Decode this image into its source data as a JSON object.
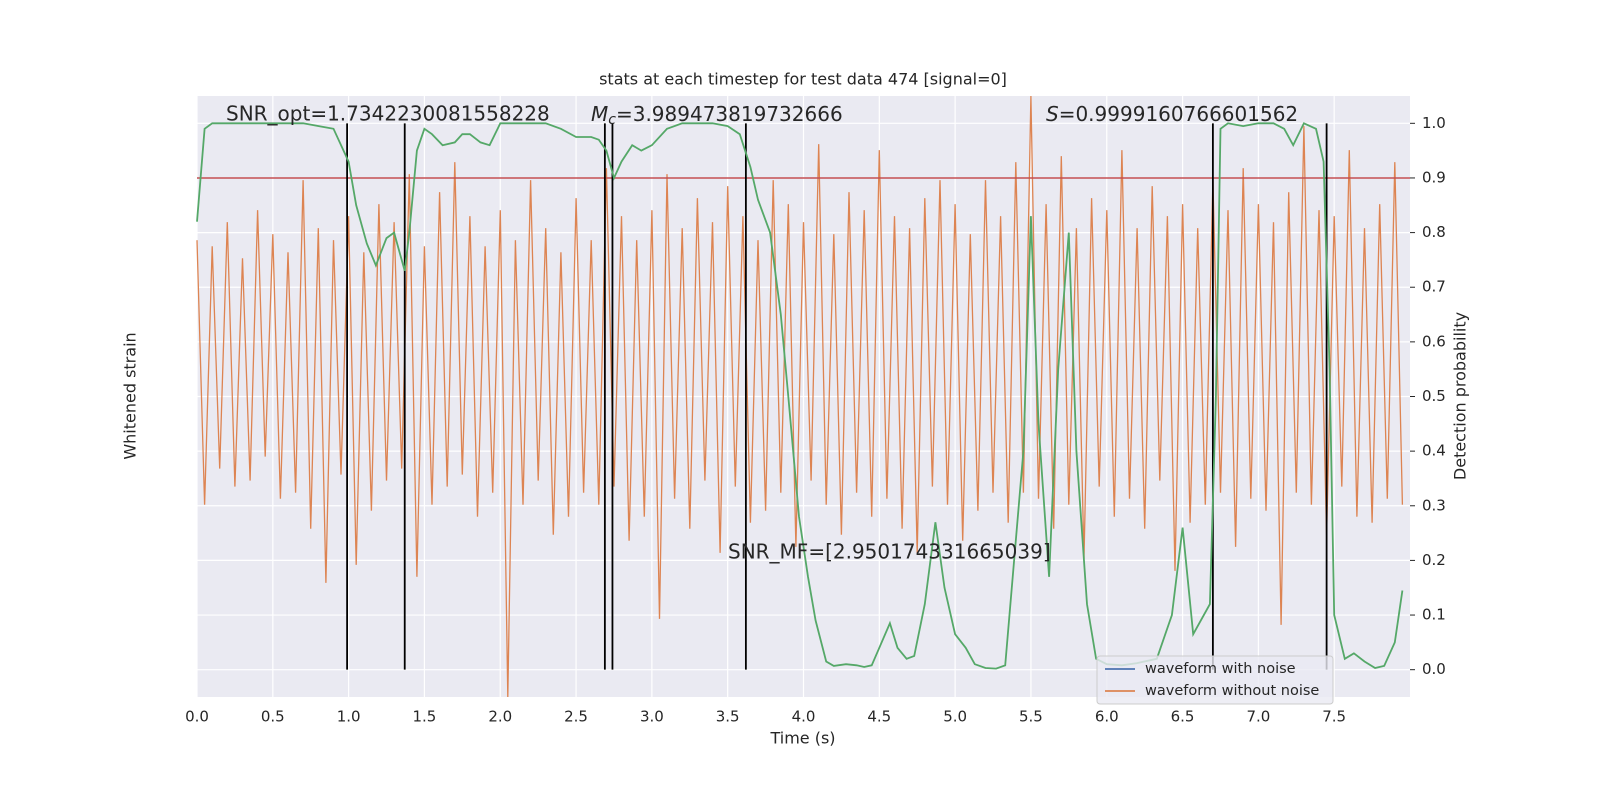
{
  "chart_data": {
    "type": "line",
    "title": "stats at each timestep for test data 474 [signal=0]",
    "xlabel": "Time (s)",
    "ylabel": "Whitened strain",
    "y2label": "Detection probability",
    "xlim": [
      0,
      8
    ],
    "xticks": [
      {
        "value": 0,
        "label": "0.0"
      },
      0.5,
      {
        "value": 1,
        "label": "1.0"
      },
      1.5,
      {
        "value": 2,
        "label": "2.0"
      },
      2.5,
      {
        "value": 3,
        "label": "3.0"
      },
      3.5,
      {
        "value": 4,
        "label": "4.0"
      },
      4.5,
      {
        "value": 5,
        "label": "5.0"
      },
      5.5,
      {
        "value": 6,
        "label": "6.0"
      },
      6.5,
      {
        "value": 7,
        "label": "7.0"
      },
      7.5
    ],
    "ylim": [
      -5.6,
      4.4
    ],
    "y2lim": [
      -0.05,
      1.05
    ],
    "y2ticks": [
      {
        "value": 0,
        "label": "0.0"
      },
      0.1,
      0.2,
      0.3,
      0.4,
      0.5,
      0.6,
      0.7,
      0.8,
      0.9,
      {
        "value": 1,
        "label": "1.0"
      }
    ],
    "grid": true,
    "legend": "lower right",
    "series": [
      {
        "name": "waveform with noise",
        "color": "#4c72b0",
        "x": [],
        "values": []
      },
      {
        "name": "waveform without noise",
        "color": "#dd8452",
        "x": [
          0,
          0.05,
          0.1,
          0.15,
          0.2,
          0.25,
          0.3,
          0.35,
          0.4,
          0.45,
          0.5,
          0.55,
          0.6,
          0.65,
          0.7,
          0.75,
          0.8,
          0.85,
          0.9,
          0.95,
          1,
          1.05,
          1.1,
          1.15,
          1.2,
          1.25,
          1.3,
          1.35,
          1.4,
          1.45,
          1.5,
          1.55,
          1.6,
          1.65,
          1.7,
          1.75,
          1.8,
          1.85,
          1.9,
          1.95,
          2,
          2.05,
          2.1,
          2.15,
          2.2,
          2.25,
          2.3,
          2.35,
          2.4,
          2.45,
          2.5,
          2.55,
          2.6,
          2.65,
          2.7,
          2.75,
          2.8,
          2.85,
          2.9,
          2.95,
          3,
          3.05,
          3.1,
          3.15,
          3.2,
          3.25,
          3.3,
          3.35,
          3.4,
          3.45,
          3.5,
          3.55,
          3.6,
          3.65,
          3.7,
          3.75,
          3.8,
          3.85,
          3.9,
          3.95,
          4,
          4.05,
          4.1,
          4.15,
          4.2,
          4.25,
          4.3,
          4.35,
          4.4,
          4.45,
          4.5,
          4.55,
          4.6,
          4.65,
          4.7,
          4.75,
          4.8,
          4.85,
          4.9,
          4.95,
          5,
          5.05,
          5.1,
          5.15,
          5.2,
          5.25,
          5.3,
          5.35,
          5.4,
          5.45,
          5.5,
          5.55,
          5.6,
          5.65,
          5.7,
          5.75,
          5.8,
          5.85,
          5.9,
          5.95,
          6,
          6.05,
          6.1,
          6.15,
          6.2,
          6.25,
          6.3,
          6.35,
          6.4,
          6.45,
          6.5,
          6.55,
          6.6,
          6.65,
          6.7,
          6.75,
          6.8,
          6.85,
          6.9,
          6.95,
          7,
          7.05,
          7.1,
          7.15,
          7.2,
          7.25,
          7.3,
          7.35,
          7.4,
          7.45,
          7.5,
          7.55,
          7.6,
          7.65,
          7.7,
          7.75,
          7.8,
          7.85,
          7.9,
          7.95
        ],
        "values": [
          2.0,
          -2.4,
          1.9,
          -1.8,
          2.3,
          -2.1,
          1.7,
          -2.0,
          2.5,
          -1.6,
          2.1,
          -2.3,
          1.8,
          -2.2,
          3.0,
          -2.8,
          2.2,
          -3.7,
          2.0,
          -1.9,
          2.4,
          -3.4,
          1.8,
          -2.5,
          2.6,
          -2.0,
          2.3,
          -1.8,
          3.1,
          -3.6,
          1.9,
          -2.4,
          2.8,
          -2.1,
          3.3,
          -1.9,
          2.4,
          -2.6,
          1.9,
          -2.2,
          2.5,
          -5.6,
          2.0,
          -2.4,
          3.0,
          -2.0,
          2.2,
          -2.9,
          1.8,
          -2.6,
          2.7,
          -2.2,
          2.0,
          -2.4,
          3.2,
          -2.1,
          2.4,
          -3.0,
          2.0,
          -2.6,
          2.5,
          -4.3,
          3.1,
          -2.3,
          2.2,
          -2.8,
          2.7,
          -2.0,
          2.3,
          -3.2,
          2.9,
          -2.1,
          2.4,
          -2.7,
          2.0,
          -2.5,
          3.0,
          -2.2,
          2.6,
          -3.1,
          2.3,
          -2.0,
          3.6,
          -2.4,
          2.1,
          -2.9,
          2.8,
          -2.2,
          2.5,
          -2.6,
          3.5,
          -2.3,
          2.4,
          -2.8,
          2.2,
          -3.2,
          2.7,
          -2.1,
          3.0,
          -2.4,
          2.6,
          -3.0,
          2.1,
          -2.5,
          3.0,
          -2.2,
          2.4,
          -2.7,
          3.3,
          -2.2,
          4.4,
          -2.3,
          2.6,
          -2.8,
          3.4,
          -2.4,
          2.2,
          -3.3,
          2.7,
          -2.1,
          2.5,
          -2.6,
          3.5,
          -2.3,
          2.2,
          -2.8,
          2.9,
          -2.0,
          2.4,
          -3.5,
          2.6,
          -2.7,
          2.2,
          -2.4,
          3.0,
          -2.2,
          2.5,
          -3.1,
          3.2,
          -2.3,
          2.6,
          -2.5,
          2.3,
          -4.4,
          2.8,
          -2.2,
          3.9,
          -2.4,
          2.5,
          -2.9,
          2.4,
          -2.1,
          3.5,
          -2.6,
          2.2,
          -2.7,
          2.6,
          -2.3,
          3.3,
          -2.4
        ]
      },
      {
        "name": "detection probability",
        "color": "#55a868",
        "axis": "y2",
        "x": [
          0,
          0.05,
          0.1,
          0.3,
          0.5,
          0.7,
          0.9,
          1.0,
          1.05,
          1.12,
          1.18,
          1.25,
          1.3,
          1.37,
          1.4,
          1.45,
          1.5,
          1.55,
          1.62,
          1.7,
          1.75,
          1.8,
          1.87,
          1.93,
          2.0,
          2.3,
          2.4,
          2.5,
          2.6,
          2.65,
          2.7,
          2.75,
          2.8,
          2.87,
          2.93,
          3.0,
          3.1,
          3.2,
          3.4,
          3.5,
          3.58,
          3.65,
          3.7,
          3.78,
          3.85,
          3.9,
          3.97,
          4.03,
          4.08,
          4.15,
          4.2,
          4.28,
          4.35,
          4.4,
          4.45,
          4.5,
          4.57,
          4.62,
          4.68,
          4.73,
          4.8,
          4.87,
          4.93,
          5.0,
          5.07,
          5.13,
          5.2,
          5.27,
          5.33,
          5.45,
          5.5,
          5.55,
          5.62,
          5.68,
          5.75,
          5.8,
          5.87,
          5.93,
          6.0,
          6.1,
          6.2,
          6.33,
          6.43,
          6.5,
          6.57,
          6.68,
          6.72,
          6.75,
          6.8,
          6.9,
          7.0,
          7.1,
          7.17,
          7.23,
          7.3,
          7.38,
          7.43,
          7.47,
          7.5,
          7.57,
          7.63,
          7.7,
          7.77,
          7.83,
          7.9,
          7.95
        ],
        "values": [
          0.82,
          0.99,
          1.0,
          1.0,
          1.0,
          1.0,
          0.99,
          0.93,
          0.85,
          0.78,
          0.74,
          0.79,
          0.8,
          0.73,
          0.8,
          0.95,
          0.99,
          0.98,
          0.96,
          0.965,
          0.98,
          0.98,
          0.965,
          0.96,
          1.0,
          1.0,
          0.99,
          0.975,
          0.975,
          0.97,
          0.95,
          0.9,
          0.93,
          0.96,
          0.95,
          0.96,
          0.99,
          1.0,
          1.0,
          0.995,
          0.98,
          0.92,
          0.86,
          0.8,
          0.65,
          0.5,
          0.28,
          0.17,
          0.09,
          0.015,
          0.007,
          0.01,
          0.008,
          0.005,
          0.008,
          0.04,
          0.085,
          0.04,
          0.02,
          0.025,
          0.12,
          0.27,
          0.15,
          0.065,
          0.04,
          0.01,
          0.003,
          0.002,
          0.008,
          0.4,
          0.83,
          0.45,
          0.17,
          0.55,
          0.8,
          0.4,
          0.12,
          0.02,
          0.01,
          0.008,
          0.012,
          0.02,
          0.1,
          0.26,
          0.065,
          0.12,
          0.5,
          0.99,
          1.0,
          0.995,
          1.0,
          1.0,
          0.99,
          0.96,
          1.0,
          0.99,
          0.93,
          0.55,
          0.1,
          0.02,
          0.03,
          0.015,
          0.003,
          0.007,
          0.05,
          0.145
        ]
      }
    ],
    "threshold": {
      "value": 0.9,
      "color": "#c44e52"
    },
    "vlines": [
      0.99,
      1.37,
      2.69,
      2.74,
      3.62,
      6.7,
      7.45
    ],
    "annotations": {
      "snr_opt": "SNR_opt=1.7342230081558228",
      "mc": {
        "symbol": "M",
        "subscript": "c",
        "text": "=3.989473819732666"
      },
      "s": {
        "symbol": "S",
        "text": "=0.9999160766601562"
      },
      "snr_mf": "SNR_MF=[2.950174331665039]"
    }
  }
}
